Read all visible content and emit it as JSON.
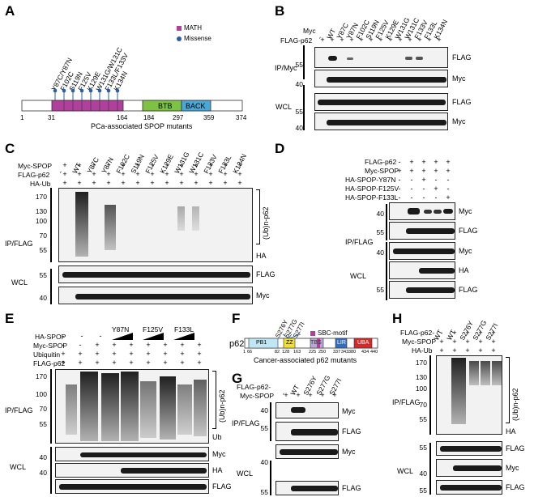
{
  "panels": {
    "A": {
      "letter": "A",
      "legend": [
        {
          "label": "MATH",
          "color": "#b0409c"
        },
        {
          "label": "Missense",
          "color": "#2a5fa8"
        }
      ],
      "mutations": [
        "Y87C/Y87N",
        "F102C",
        "S119N",
        "F125V",
        "K129E",
        "W131G/W131C",
        "F133L/F133V",
        "K134N"
      ],
      "domains": [
        {
          "name": "",
          "color": "#b0409c"
        },
        {
          "name": "BTB",
          "color": "#7dc242"
        },
        {
          "name": "BACK",
          "color": "#4aa8d8"
        }
      ],
      "positions": [
        "1",
        "31",
        "164",
        "184",
        "297",
        "359",
        "374"
      ],
      "caption": "PCa-associated SPOP mutants"
    },
    "B": {
      "letter": "B",
      "lane_headers": [
        "-",
        "WT",
        "Y87C",
        "Y87N",
        "F102C",
        "S119N",
        "F125V",
        "K129E",
        "W131G",
        "W131C",
        "F133V",
        "F133L",
        "K134N"
      ],
      "row_labels": [
        "Myc",
        "FLAG-p62"
      ],
      "signs": [
        "+",
        "+",
        "+",
        "+",
        "+",
        "+",
        "+",
        "+",
        "+",
        "+",
        "+",
        "+",
        "+"
      ],
      "group_labels": [
        "IP/Myc",
        "WCL"
      ],
      "mw": [
        "55",
        "40",
        "55",
        "40"
      ],
      "blot_labels": [
        "FLAG",
        "Myc",
        "FLAG",
        "Myc"
      ]
    },
    "C": {
      "letter": "C",
      "lane_headers": [
        "-",
        "WT",
        "Y87C",
        "Y87N",
        "F102C",
        "S119N",
        "F125V",
        "K129E",
        "W131G",
        "W131C",
        "F133V",
        "F133L",
        "K134N"
      ],
      "row_labels": [
        "Myc-SPOP",
        "FLAG-p62",
        "HA-Ub"
      ],
      "signs": [
        "+",
        "+",
        "+",
        "+",
        "+",
        "+",
        "+",
        "+",
        "+",
        "+",
        "+",
        "+",
        "+"
      ],
      "group_labels": [
        "IP/FLAG",
        "WCL"
      ],
      "mw": [
        "170",
        "130",
        "100",
        "70",
        "55",
        "55",
        "40"
      ],
      "side_labels": [
        "(Ub)n-p62",
        "HA",
        "FLAG",
        "Myc"
      ]
    },
    "D": {
      "letter": "D",
      "row_labels": [
        "FLAG-p62",
        "Myc-SPOP",
        "HA-SPOP-Y87N",
        "HA-SPOP-F125V",
        "HA-SPOP-F133L"
      ],
      "signs": [
        [
          "-",
          "+",
          "+",
          "+",
          "+"
        ],
        [
          "+",
          "+",
          "+",
          "+",
          "+"
        ],
        [
          "-",
          "-",
          "+",
          "-",
          "-"
        ],
        [
          "-",
          "-",
          "-",
          "+",
          "-"
        ],
        [
          "-",
          "-",
          "-",
          "-",
          "+"
        ]
      ],
      "group_labels": [
        "IP/FLAG",
        "WCL"
      ],
      "mw": [
        "40",
        "55",
        "40",
        "55"
      ],
      "blot_labels": [
        "Myc",
        "FLAG",
        "Myc",
        "HA",
        "FLAG"
      ]
    },
    "E": {
      "letter": "E",
      "mutant_headers": [
        "Y87N",
        "F125V",
        "F133L"
      ],
      "row_labels": [
        "HA-SPOP",
        "Myc-SPOP",
        "Ubiquitin",
        "FLAG-p62"
      ],
      "signs": [
        [
          "-",
          "-",
          "-",
          "",
          "",
          "",
          ""
        ],
        [
          "-",
          "-",
          "+",
          "+",
          "+",
          "+",
          "+",
          "+",
          "+"
        ],
        [
          "+",
          "+",
          "+",
          "+",
          "+",
          "+",
          "+",
          "+",
          "+"
        ],
        [
          "+",
          "+",
          "+",
          "+",
          "+",
          "+",
          "+",
          "+",
          "+"
        ]
      ],
      "group_labels": [
        "IP/FLAG",
        "WCL"
      ],
      "mw": [
        "170",
        "100",
        "70",
        "55",
        "40",
        "40"
      ],
      "side_labels": [
        "(Ub)n-p62",
        "Ub",
        "Myc",
        "HA",
        "FLAG"
      ]
    },
    "F": {
      "letter": "F",
      "legend": {
        "label": "SBC-motif",
        "color": "#b0409c"
      },
      "protein": "p62",
      "mutations": [
        "S276Y",
        "S277G",
        "S277I"
      ],
      "domains": [
        {
          "name": "PB1",
          "color": "#bfe6f2"
        },
        {
          "name": "ZZ",
          "color": "#f2e12a"
        },
        {
          "name": "TBS",
          "color": "#b9a6d6"
        },
        {
          "name": "LIR",
          "color": "#2f6ec2"
        },
        {
          "name": "UBA",
          "color": "#d32b2b"
        }
      ],
      "positions": [
        "1",
        "66",
        "82",
        "128",
        "163",
        "225",
        "250",
        "337",
        "343",
        "380",
        "434",
        "440"
      ],
      "caption": "Cancer-associated p62 mutants"
    },
    "G": {
      "letter": "G",
      "lane_headers": [
        "-",
        "WT",
        "S276Y",
        "S277G",
        "S277I"
      ],
      "row_labels": [
        "FLAG-p62-",
        "Myc-SPOP"
      ],
      "signs": [
        "+",
        "+",
        "+",
        "+",
        "+"
      ],
      "group_labels": [
        "IP/FLAG",
        "WCL"
      ],
      "mw": [
        "40",
        "55",
        "40",
        "55"
      ],
      "blot_labels": [
        "Myc",
        "FLAG",
        "Myc",
        "FLAG"
      ]
    },
    "H": {
      "letter": "H",
      "lane_headers": [
        "WT",
        "WT",
        "S276Y",
        "S277G",
        "S277I"
      ],
      "row_labels": [
        "FLAG-p62-",
        "Myc-SPOP",
        "HA-Ub"
      ],
      "signs": [
        [
          "-",
          "+",
          "+",
          "+",
          "+"
        ],
        [
          "+",
          "+",
          "+",
          "+",
          "+"
        ]
      ],
      "group_labels": [
        "IP/FLAG",
        "WCL"
      ],
      "mw": [
        "170",
        "130",
        "100",
        "70",
        "55",
        "55",
        "40",
        "55"
      ],
      "side_labels": [
        "(Ub)n-p62",
        "HA",
        "FLAG",
        "Myc",
        "FLAG"
      ]
    }
  }
}
